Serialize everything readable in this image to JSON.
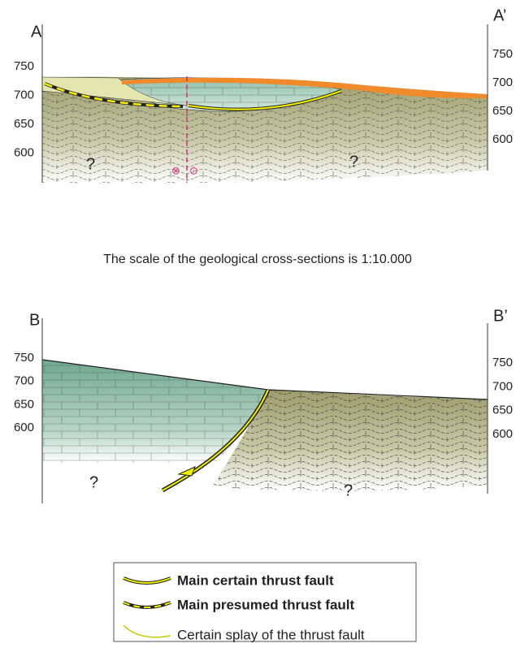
{
  "sections": [
    {
      "left_label": "A",
      "right_label": "A’",
      "left_ticks": [
        750,
        700,
        650,
        600
      ],
      "right_ticks": [
        750,
        700,
        650,
        600
      ],
      "unknown_labels": [
        "?",
        "?"
      ],
      "fault_symbols": [
        "⊗",
        "⊙"
      ]
    },
    {
      "left_label": "B",
      "right_label": "B’",
      "left_ticks": [
        750,
        700,
        650,
        600
      ],
      "right_ticks": [
        750,
        700,
        650,
        600
      ],
      "unknown_labels": [
        "?",
        "?"
      ]
    }
  ],
  "scale_note": "The scale of the geological cross-sections is 1:10.000",
  "legend": {
    "items": [
      {
        "label": "Main certain thrust fault"
      },
      {
        "label": "Main presumed thrust fault"
      },
      {
        "label": "Certain splay of the thrust fault"
      }
    ]
  }
}
